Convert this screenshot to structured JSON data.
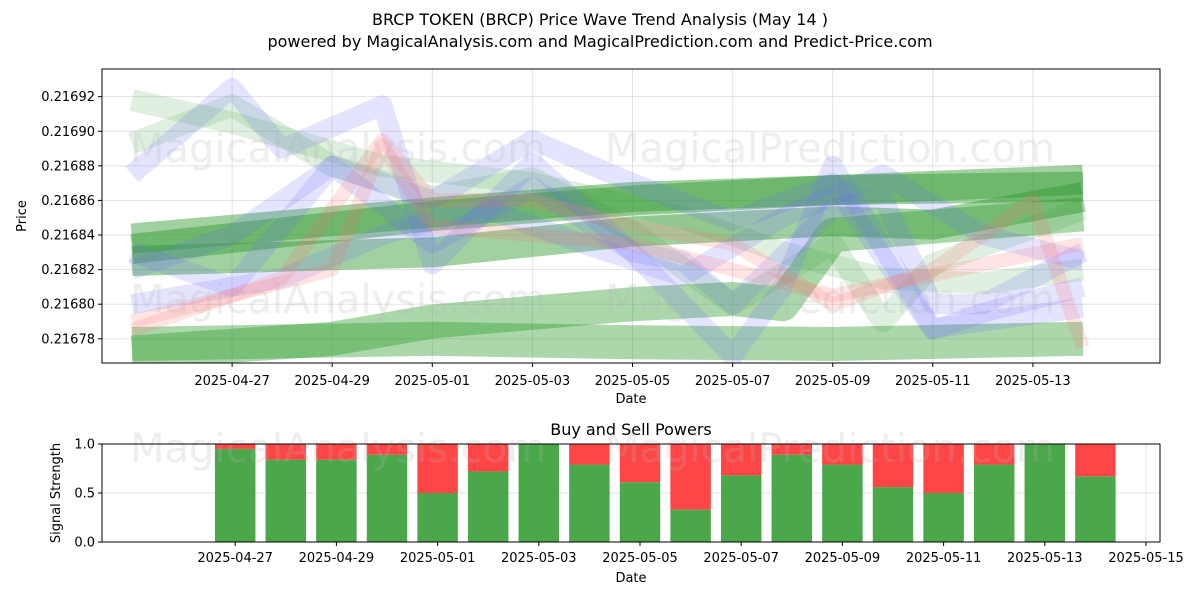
{
  "header": {
    "title": "BRCP TOKEN (BRCP) Price Wave Trend Analysis (May 14 )",
    "subtitle": "powered by MagicalAnalysis.com and MagicalPrediction.com and Predict-Price.com"
  },
  "watermarks": {
    "top_1": "MagicalAnalysis.com",
    "top_2": "MagicalPrediction.com",
    "mid_1": "MagicalAnalysis.com",
    "mid_2": "MagicalPrediction.com",
    "bottom_1": "MagicalAnalysis.com",
    "bottom_2": "MagicalPrediction.com"
  },
  "colors": {
    "green_band": "#2e9a2e",
    "blue_band": "#6a6aff",
    "red_band": "#ff6b6b",
    "buy": "#4aa84a",
    "sell": "#ff4646"
  },
  "chart_data": [
    {
      "type": "line",
      "title": "",
      "xlabel": "Date",
      "ylabel": "Price",
      "xlim": [
        "2025-04-25",
        "2025-05-15"
      ],
      "ylim": [
        0.216766,
        0.216936
      ],
      "x_ticks": [
        "2025-04-27",
        "2025-04-29",
        "2025-05-01",
        "2025-05-03",
        "2025-05-05",
        "2025-05-07",
        "2025-05-09",
        "2025-05-11",
        "2025-05-13"
      ],
      "y_ticks": [
        0.21678,
        0.2168,
        0.21682,
        0.21684,
        0.21686,
        0.21688,
        0.2169,
        0.21692
      ],
      "grid": true,
      "series": [
        {
          "style": "green",
          "width": 34,
          "opacity": 0.4,
          "x": [
            "2025-04-25",
            "2025-05-01",
            "2025-05-05",
            "2025-05-09",
            "2025-05-14"
          ],
          "y": [
            0.216777,
            0.21678,
            0.216778,
            0.216777,
            0.21678
          ]
        },
        {
          "style": "green",
          "width": 34,
          "opacity": 0.4,
          "x": [
            "2025-04-25",
            "2025-04-29",
            "2025-05-01",
            "2025-05-05",
            "2025-05-07",
            "2025-05-08",
            "2025-05-09",
            "2025-05-14"
          ],
          "y": [
            0.216772,
            0.21678,
            0.21679,
            0.2168,
            0.216803,
            0.2168,
            0.21684,
            0.216852
          ]
        },
        {
          "style": "green",
          "width": 30,
          "opacity": 0.45,
          "x": [
            "2025-04-25",
            "2025-05-01",
            "2025-05-05",
            "2025-05-09",
            "2025-05-14"
          ],
          "y": [
            0.216838,
            0.216853,
            0.216862,
            0.216866,
            0.216868
          ]
        },
        {
          "style": "green",
          "width": 30,
          "opacity": 0.45,
          "x": [
            "2025-04-25",
            "2025-05-01",
            "2025-05-05",
            "2025-05-09",
            "2025-05-14"
          ],
          "y": [
            0.216832,
            0.216851,
            0.21686,
            0.216866,
            0.216872
          ]
        },
        {
          "style": "green",
          "width": 30,
          "opacity": 0.45,
          "x": [
            "2025-04-25",
            "2025-05-01",
            "2025-05-05",
            "2025-05-09",
            "2025-05-11",
            "2025-05-14"
          ],
          "y": [
            0.216825,
            0.21683,
            0.216842,
            0.216848,
            0.216846,
            0.216862
          ]
        },
        {
          "style": "green",
          "width": 22,
          "opacity": 0.15,
          "x": [
            "2025-04-25",
            "2025-04-27",
            "2025-04-30",
            "2025-05-03",
            "2025-05-06",
            "2025-05-08",
            "2025-05-10",
            "2025-05-12",
            "2025-05-14"
          ],
          "y": [
            0.216918,
            0.216905,
            0.21688,
            0.21687,
            0.21685,
            0.21683,
            0.216815,
            0.216812,
            0.21682
          ]
        },
        {
          "style": "green",
          "width": 22,
          "opacity": 0.15,
          "x": [
            "2025-04-25",
            "2025-04-27",
            "2025-04-29",
            "2025-05-01",
            "2025-05-03",
            "2025-05-05",
            "2025-05-07",
            "2025-05-09",
            "2025-05-10",
            "2025-05-11",
            "2025-05-14"
          ],
          "y": [
            0.216893,
            0.216915,
            0.21688,
            0.216862,
            0.216873,
            0.216842,
            0.2168,
            0.216835,
            0.21679,
            0.216823,
            0.216855
          ]
        },
        {
          "style": "blue",
          "width": 20,
          "opacity": 0.18,
          "x": [
            "2025-04-25",
            "2025-04-27",
            "2025-04-28",
            "2025-04-30",
            "2025-05-01",
            "2025-05-03",
            "2025-05-05",
            "2025-05-06",
            "2025-05-07",
            "2025-05-09",
            "2025-05-10",
            "2025-05-11",
            "2025-05-12",
            "2025-05-14"
          ],
          "y": [
            0.216875,
            0.216925,
            0.21689,
            0.216915,
            0.216823,
            0.216882,
            0.21683,
            0.216825,
            0.2168,
            0.216855,
            0.216862,
            0.2168,
            0.2168,
            0.21683
          ]
        },
        {
          "style": "blue",
          "width": 20,
          "opacity": 0.18,
          "x": [
            "2025-04-25",
            "2025-04-27",
            "2025-04-29",
            "2025-05-01",
            "2025-05-03",
            "2025-05-05",
            "2025-05-07",
            "2025-05-09",
            "2025-05-11",
            "2025-05-12",
            "2025-05-14"
          ],
          "y": [
            0.21682,
            0.21684,
            0.21688,
            0.21686,
            0.216895,
            0.21687,
            0.216848,
            0.21687,
            0.216785,
            0.216795,
            0.21681
          ]
        },
        {
          "style": "blue",
          "width": 20,
          "opacity": 0.18,
          "x": [
            "2025-04-25",
            "2025-04-27",
            "2025-04-29",
            "2025-05-01",
            "2025-05-03",
            "2025-05-05",
            "2025-05-07",
            "2025-05-08",
            "2025-05-09",
            "2025-05-11",
            "2025-05-14"
          ],
          "y": [
            0.21683,
            0.21681,
            0.21688,
            0.216835,
            0.216868,
            0.21683,
            0.21677,
            0.21681,
            0.21688,
            0.216786,
            0.216798
          ]
        },
        {
          "style": "blue",
          "width": 20,
          "opacity": 0.18,
          "x": [
            "2025-04-25",
            "2025-04-28",
            "2025-04-30",
            "2025-05-02",
            "2025-05-04",
            "2025-05-06",
            "2025-05-08",
            "2025-05-10",
            "2025-05-12",
            "2025-05-14"
          ],
          "y": [
            0.2168,
            0.216815,
            0.21684,
            0.216856,
            0.216835,
            0.216816,
            0.21685,
            0.216875,
            0.21684,
            0.216825
          ]
        },
        {
          "style": "red",
          "width": 14,
          "opacity": 0.18,
          "x": [
            "2025-04-25",
            "2025-04-28",
            "2025-04-30",
            "2025-05-01",
            "2025-05-03",
            "2025-05-05",
            "2025-05-07",
            "2025-05-09",
            "2025-05-11",
            "2025-05-13",
            "2025-05-14"
          ],
          "y": [
            0.216785,
            0.216815,
            0.216895,
            0.21686,
            0.21686,
            0.216845,
            0.216835,
            0.2168,
            0.21682,
            0.21686,
            0.216775
          ]
        },
        {
          "style": "red",
          "width": 14,
          "opacity": 0.18,
          "x": [
            "2025-04-25",
            "2025-04-29",
            "2025-04-30",
            "2025-05-01",
            "2025-05-05",
            "2025-05-09",
            "2025-05-14"
          ],
          "y": [
            0.21679,
            0.21682,
            0.216892,
            0.216845,
            0.216835,
            0.216805,
            0.216835
          ]
        }
      ]
    },
    {
      "type": "bar",
      "title": "Buy and Sell Powers",
      "xlabel": "Date",
      "ylabel": "Signal Strength",
      "xlim": [
        "2025-04-25",
        "2025-05-15"
      ],
      "ylim": [
        0,
        1
      ],
      "x_ticks": [
        "2025-04-27",
        "2025-04-29",
        "2025-05-01",
        "2025-05-03",
        "2025-05-05",
        "2025-05-07",
        "2025-05-09",
        "2025-05-11",
        "2025-05-13",
        "2025-05-15"
      ],
      "y_ticks": [
        "0.0",
        "0.5",
        "1.0"
      ],
      "grid": true,
      "categories": [
        "2025-04-27",
        "2025-04-28",
        "2025-04-29",
        "2025-04-30",
        "2025-05-01",
        "2025-05-02",
        "2025-05-03",
        "2025-05-04",
        "2025-05-05",
        "2025-05-06",
        "2025-05-07",
        "2025-05-08",
        "2025-05-09",
        "2025-05-10",
        "2025-05-11",
        "2025-05-12",
        "2025-05-13",
        "2025-05-14"
      ],
      "series": [
        {
          "name": "Buy",
          "values": [
            0.95,
            0.84,
            0.84,
            0.89,
            0.5,
            0.72,
            1.0,
            0.79,
            0.61,
            0.33,
            0.68,
            0.89,
            0.79,
            0.56,
            0.5,
            0.79,
            1.0,
            0.67
          ]
        },
        {
          "name": "Sell",
          "values": [
            0.05,
            0.16,
            0.16,
            0.11,
            0.5,
            0.28,
            0.0,
            0.21,
            0.39,
            0.67,
            0.32,
            0.11,
            0.21,
            0.44,
            0.5,
            0.21,
            0.0,
            0.33
          ]
        }
      ]
    }
  ]
}
